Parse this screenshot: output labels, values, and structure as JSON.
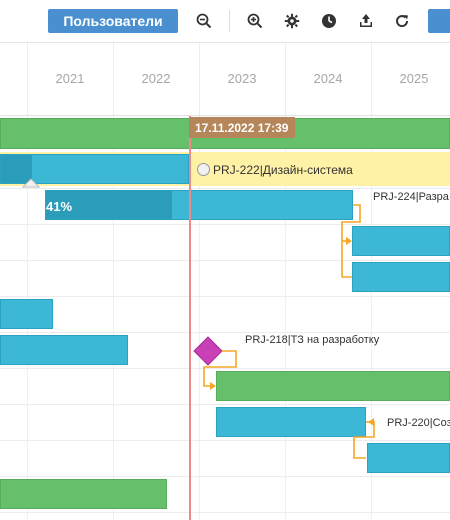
{
  "toolbar": {
    "users_button": "Пользователи",
    "icons": [
      "zoom-out-icon",
      "zoom-in-icon",
      "gear-icon",
      "clock-icon",
      "upload-icon",
      "refresh-icon"
    ]
  },
  "timescale": {
    "years": [
      "2021",
      "2022",
      "2023",
      "2024",
      "2025"
    ]
  },
  "today_marker": "17.11.2022 17:39",
  "tasks": {
    "design_system": "PRJ-222|Дизайн-система",
    "task_224": "PRJ-224|Разра",
    "task_224_progress": "41%",
    "task_218": "PRJ-218|ТЗ на разработку",
    "task_220": "PRJ-220|Соз"
  },
  "colors": {
    "accent": "#4a90d0",
    "bar_green": "#66bf6a",
    "bar_blue": "#3cb8d6",
    "bar_blue_progress": "#2b9cb9",
    "summary_yellow": "#fff2a6",
    "today_line": "#f08a8a",
    "today_tag": "#b5865a",
    "milestone": "#c93fb5",
    "link": "#f5a623"
  }
}
